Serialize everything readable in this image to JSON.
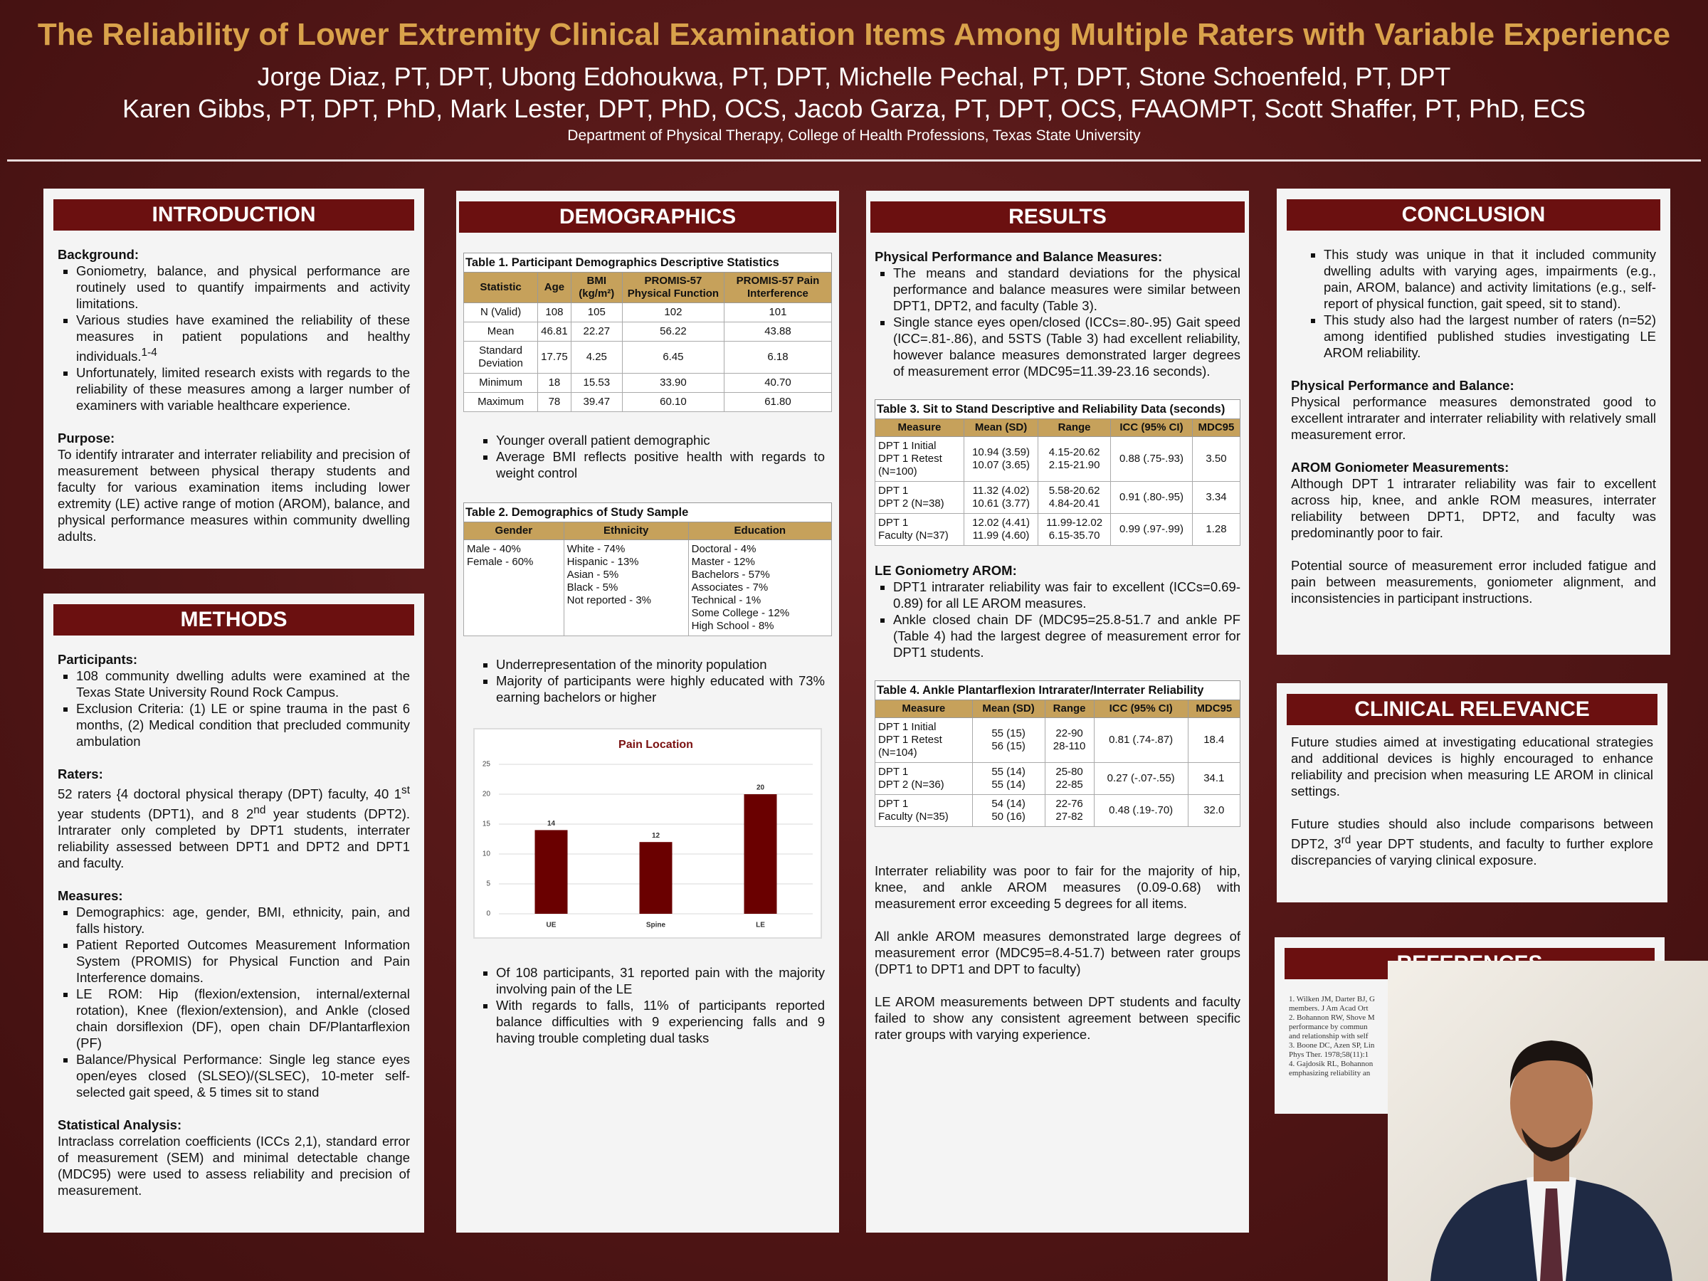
{
  "header": {
    "title": "The Reliability of Lower Extremity Clinical Examination Items Among Multiple Raters with Variable Experience",
    "authors_line1": "Jorge Diaz, PT, DPT, Ubong Edohoukwa, PT, DPT, Michelle Pechal, PT, DPT,  Stone Schoenfeld, PT, DPT",
    "authors_line2": "Karen Gibbs, PT, DPT, PhD, Mark Lester, DPT, PhD, OCS, Jacob Garza, PT, DPT, OCS, FAAOMPT, Scott Shaffer, PT, PhD, ECS",
    "department": "Department of Physical Therapy, College of Health Professions, Texas State University"
  },
  "introduction": {
    "heading": "INTRODUCTION",
    "background_label": "Background:",
    "background_bullets": [
      "Goniometry, balance, and physical performance are routinely used to quantify impairments and activity limitations.",
      [
        "Various studies have examined the reliability of these measures in patient populations and healthy individuals.",
        "1-4"
      ],
      "Unfortunately, limited research exists with regards to the reliability of these measures among a larger number of examiners with variable healthcare experience."
    ],
    "purpose_label": "Purpose:",
    "purpose_text": "To identify intrarater and interrater reliability and precision of measurement between physical therapy students and faculty for various examination items including lower extremity (LE) active range of motion (AROM), balance, and physical performance measures within community dwelling adults."
  },
  "methods": {
    "heading": "METHODS",
    "participants_label": "Participants:",
    "participants_bullets": [
      "108 community dwelling adults were examined at the Texas State University Round Rock Campus.",
      "Exclusion Criteria: (1) LE or spine trauma in the past 6 months, (2) Medical condition that precluded community ambulation"
    ],
    "raters_label": "Raters:",
    "raters_text": [
      "52 raters {4 doctoral physical therapy (DPT) faculty, 40 1",
      "st",
      " year students (DPT1), and 8 2",
      "nd",
      " year students (DPT2). Intrarater only completed by DPT1 students, interrater reliability assessed between DPT1 and DPT2 and DPT1 and faculty."
    ],
    "measures_label": "Measures:",
    "measures_bullets": [
      "Demographics: age, gender, BMI, ethnicity, pain, and falls history.",
      "Patient Reported Outcomes Measurement Information System (PROMIS) for Physical Function and Pain Interference domains.",
      "LE ROM: Hip (flexion/extension, internal/external rotation), Knee (flexion/extension), and Ankle (closed chain dorsiflexion (DF), open chain DF/Plantarflexion (PF)",
      "Balance/Physical Performance: Single leg stance eyes open/eyes closed (SLSEO)/(SLSEC), 10-meter self-selected gait speed, & 5 times sit to stand"
    ],
    "stats_label": "Statistical Analysis:",
    "stats_text": "Intraclass correlation coefficients (ICCs 2,1), standard error of measurement (SEM) and minimal detectable change (MDC95) were used to assess reliability and precision of measurement."
  },
  "demographics": {
    "heading": "DEMOGRAPHICS",
    "table1": {
      "caption": "Table 1. Participant Demographics Descriptive Statistics",
      "headers": [
        "Statistic",
        "Age",
        "BMI (kg/m²)",
        "PROMIS-57 Physical Function",
        "PROMIS-57 Pain Interference"
      ],
      "rows": [
        [
          "N (Valid)",
          "108",
          "105",
          "102",
          "101"
        ],
        [
          "Mean",
          "46.81",
          "22.27",
          "56.22",
          "43.88"
        ],
        [
          "Standard Deviation",
          "17.75",
          "4.25",
          "6.45",
          "6.18"
        ],
        [
          "Minimum",
          "18",
          "15.53",
          "33.90",
          "40.70"
        ],
        [
          "Maximum",
          "78",
          "39.47",
          "60.10",
          "61.80"
        ]
      ]
    },
    "bullets1": [
      "Younger overall patient demographic",
      "Average BMI reflects positive health with regards to weight control"
    ],
    "table2": {
      "caption": "Table 2. Demographics of Study Sample",
      "headers": [
        "Gender",
        "Ethnicity",
        "Education"
      ],
      "rows": [
        [
          [
            "Male - 40%",
            "Female - 60%"
          ],
          [
            "White - 74%",
            "Hispanic - 13%",
            "Asian - 5%",
            "Black - 5%",
            "Not reported - 3%"
          ],
          [
            "Doctoral - 4%",
            "Master - 12%",
            "Bachelors - 57%",
            "Associates - 7%",
            "Technical - 1%",
            "Some College - 12%",
            "High School - 8%"
          ]
        ]
      ]
    },
    "bullets2": [
      "Underrepresentation of the minority population",
      "Majority of participants were highly educated with 73% earning bachelors or higher"
    ],
    "chart": {
      "type": "bar",
      "title": "Pain Location",
      "categories": [
        "UE",
        "Spine",
        "LE"
      ],
      "values": [
        14,
        12,
        20
      ],
      "color": "#6a0000",
      "ylim": [
        0,
        25
      ],
      "yticks": [
        0,
        5,
        10,
        15,
        20,
        25
      ],
      "grid": true
    },
    "bullets3": [
      "Of 108 participants, 31 reported pain with the majority involving pain of the LE",
      "With regards to falls, 11% of participants reported balance difficulties with 9 experiencing falls and 9 having trouble completing dual tasks"
    ]
  },
  "results": {
    "heading": "RESULTS",
    "section1_label": "Physical Performance and Balance Measures:",
    "section1_bullets": [
      "The means and standard deviations for the physical performance and balance measures were similar between DPT1, DPT2, and faculty (Table 3).",
      "Single stance eyes open/closed (ICCs=.80-.95) Gait speed (ICC=.81-.86), and 5STS (Table 3) had excellent reliability, however balance measures demonstrated larger degrees of measurement error (MDC95=11.39-23.16 seconds)."
    ],
    "table3": {
      "caption": "Table 3. Sit to Stand Descriptive and Reliability Data (seconds)",
      "headers": [
        "Measure",
        "Mean (SD)",
        "Range",
        "ICC (95% CI)",
        "MDC95"
      ],
      "rows": [
        [
          [
            "DPT 1 Initial",
            "DPT 1 Retest",
            "(N=100)"
          ],
          [
            "10.94 (3.59)",
            "10.07 (3.65)"
          ],
          [
            "4.15-20.62",
            "2.15-21.90"
          ],
          "0.88 (.75-.93)",
          "3.50"
        ],
        [
          [
            "DPT 1",
            "DPT 2 (N=38)"
          ],
          [
            "11.32 (4.02)",
            "10.61 (3.77)"
          ],
          [
            "5.58-20.62",
            "4.84-20.41"
          ],
          "0.91 (.80-.95)",
          "3.34"
        ],
        [
          [
            "DPT 1",
            "Faculty (N=37)"
          ],
          [
            "12.02 (4.41)",
            "11.99 (4.60)"
          ],
          [
            "11.99-12.02",
            "6.15-35.70"
          ],
          "0.99 (.97-.99)",
          "1.28"
        ]
      ]
    },
    "section2_label": "LE Goniometry AROM:",
    "section2_bullets": [
      "DPT1 intrarater reliability was fair to excellent (ICCs=0.69-0.89) for all LE  AROM measures.",
      "Ankle closed chain DF (MDC95=25.8-51.7 and ankle PF (Table 4) had the largest degree of measurement error for DPT1 students."
    ],
    "table4": {
      "caption": "Table 4. Ankle Plantarflexion Intrarater/Interrater Reliability",
      "headers": [
        "Measure",
        "Mean (SD)",
        "Range",
        "ICC (95% CI)",
        "MDC95"
      ],
      "rows": [
        [
          [
            "DPT 1 Initial",
            "DPT 1 Retest",
            "(N=104)"
          ],
          [
            "55 (15)",
            "56 (15)"
          ],
          [
            "22-90",
            "28-110"
          ],
          "0.81 (.74-.87)",
          "18.4"
        ],
        [
          [
            "DPT 1",
            "DPT 2 (N=36)"
          ],
          [
            "55 (14)",
            "55 (14)"
          ],
          [
            "25-80",
            "22-85"
          ],
          "0.27 (-.07-.55)",
          "34.1"
        ],
        [
          [
            "DPT 1",
            "Faculty (N=35)"
          ],
          [
            "54 (14)",
            "50 (16)"
          ],
          [
            "22-76",
            "27-82"
          ],
          "0.48 (.19-.70)",
          "32.0"
        ]
      ]
    },
    "paragraphs": [
      "Interrater reliability was poor to fair for the majority of hip, knee, and ankle AROM measures (0.09-0.68) with measurement error exceeding 5 degrees for all items.",
      "All ankle AROM measures demonstrated large degrees of measurement error (MDC95=8.4-51.7) between rater groups (DPT1 to DPT1 and DPT to faculty)",
      "LE AROM measurements between DPT students and faculty failed to show any consistent agreement between specific rater groups with varying experience."
    ]
  },
  "conclusion": {
    "heading": "CONCLUSION",
    "bullets": [
      "This study was unique in that it included community dwelling adults with varying ages, impairments (e.g., pain, AROM, balance) and activity limitations (e.g., self-report of physical function, gait speed, sit to stand).",
      "This study also had the largest number of raters (n=52) among identified published studies investigating LE AROM reliability."
    ],
    "performance_label": "Physical Performance and Balance:",
    "performance_text": "Physical performance measures demonstrated good to excellent intrarater and interrater reliability with relatively small measurement error.",
    "arom_label": "AROM Goniometer Measurements:",
    "arom_text": "Although DPT 1 intrarater reliability was fair to excellent across hip, knee, and ankle ROM measures, interrater reliability between DPT1, DPT2, and faculty was predominantly poor to fair.",
    "closing_text": "Potential source of measurement error included fatigue and pain between measurements, goniometer alignment, and inconsistencies in participant instructions."
  },
  "clinical_relevance": {
    "heading": "CLINICAL RELEVANCE",
    "paragraph1": "Future studies aimed at investigating educational strategies and additional devices is highly encouraged to enhance reliability and precision when measuring LE AROM in clinical settings.",
    "paragraph2": [
      "Future studies should also include comparisons between DPT2, 3",
      "rd",
      " year DPT students, and faculty to further explore discrepancies of varying clinical exposure."
    ]
  },
  "references": {
    "heading": "REFERENCES",
    "lines": [
      "1. Wilken JM, Darter BJ, G",
      "members. J Am Acad Ort",
      "2. Bohannon RW, Shove M",
      "performance by commun",
      "and relationship with self",
      "3. Boone DC, Azen SP, Lin",
      "Phys Ther. 1978;58(11):1",
      "4. Gajdosik RL, Bohannon",
      "emphasizing reliability an"
    ]
  }
}
